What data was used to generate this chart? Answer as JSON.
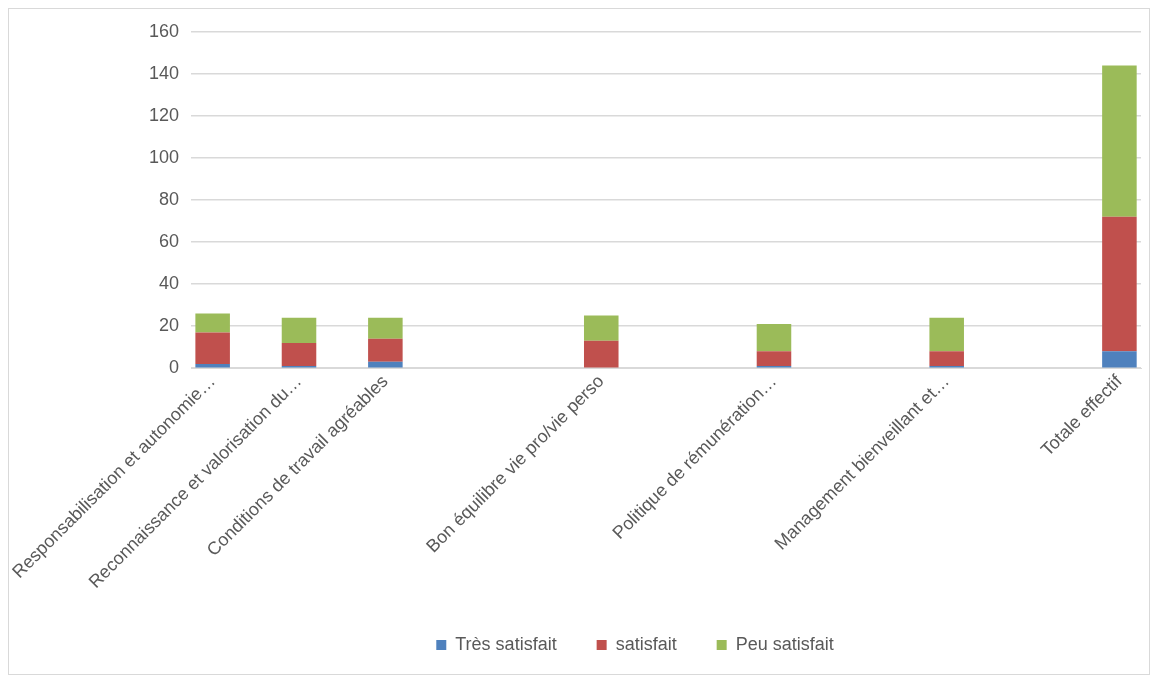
{
  "chart_data": {
    "type": "bar",
    "stacked": true,
    "categories": [
      "Responsabilisation et autonomie…",
      null,
      "Reconnaissance et valorisation du…",
      null,
      "Conditions de travail agréables",
      null,
      null,
      null,
      null,
      "Bon équilibre vie pro/vie perso",
      null,
      null,
      null,
      "Politique de rémunération…",
      null,
      null,
      null,
      "Management bienveillant et…",
      null,
      null,
      null,
      "Totale effectif"
    ],
    "series": [
      {
        "name": "Très satisfait",
        "color": "#4f81bd",
        "values": [
          2,
          null,
          1,
          null,
          3,
          null,
          null,
          null,
          null,
          0,
          null,
          null,
          null,
          1,
          null,
          null,
          null,
          1,
          null,
          null,
          null,
          8
        ]
      },
      {
        "name": "satisfait",
        "color": "#c0504d",
        "values": [
          15,
          null,
          11,
          null,
          11,
          null,
          null,
          null,
          null,
          13,
          null,
          null,
          null,
          7,
          null,
          null,
          null,
          7,
          null,
          null,
          null,
          64
        ]
      },
      {
        "name": "Peu satisfait",
        "color": "#9bbb59",
        "values": [
          9,
          null,
          12,
          null,
          10,
          null,
          null,
          null,
          null,
          12,
          null,
          null,
          null,
          13,
          null,
          null,
          null,
          16,
          null,
          null,
          null,
          72
        ]
      }
    ],
    "ylim": [
      0,
      160
    ],
    "yticks": [
      0,
      20,
      40,
      60,
      80,
      100,
      120,
      140,
      160
    ],
    "grid": "y",
    "legend": "bottom"
  }
}
